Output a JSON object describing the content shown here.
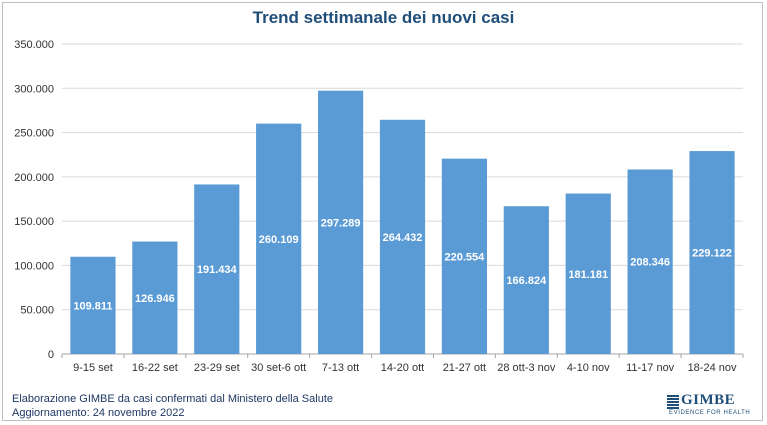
{
  "chart_data": {
    "type": "bar",
    "title": "Trend settimanale dei nuovi casi",
    "categories": [
      "9-15 set",
      "16-22 set",
      "23-29 set",
      "30 set-6 ott",
      "7-13 ott",
      "14-20 ott",
      "21-27 ott",
      "28 ott-3 nov",
      "4-10 nov",
      "11-17 nov",
      "18-24 nov"
    ],
    "values": [
      109811,
      126946,
      191434,
      260109,
      297289,
      264432,
      220554,
      166824,
      181181,
      208346,
      229122
    ],
    "value_labels": [
      "109.811",
      "126.946",
      "191.434",
      "260.109",
      "297.289",
      "264.432",
      "220.554",
      "166.824",
      "181.181",
      "208.346",
      "229.122"
    ],
    "y_ticks": [
      0,
      50000,
      100000,
      150000,
      200000,
      250000,
      300000,
      350000
    ],
    "y_tick_labels": [
      "0",
      "50.000",
      "100.000",
      "150.000",
      "200.000",
      "250.000",
      "300.000",
      "350.000"
    ],
    "ylim": [
      0,
      350000
    ],
    "grid": true,
    "legend": "none",
    "bar_color": "#5b9bd5"
  },
  "footer": {
    "source": "Elaborazione GIMBE da casi confermati dal Ministero della Salute",
    "updated": "Aggiornamento: 24 novembre 2022"
  },
  "logo": {
    "name": "GIMBE",
    "tagline": "EVIDENCE FOR HEALTH"
  }
}
